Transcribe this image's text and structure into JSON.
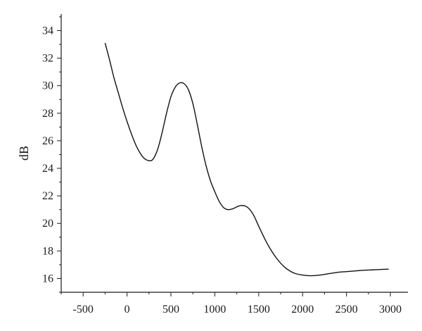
{
  "chart_data": {
    "type": "line",
    "title": "",
    "xlabel": "",
    "ylabel": "dB",
    "xlim": [
      -750,
      3200
    ],
    "ylim": [
      15,
      35.2
    ],
    "x_ticks": [
      -500,
      0,
      500,
      1000,
      1500,
      2000,
      2500,
      3000
    ],
    "y_ticks": [
      16,
      18,
      20,
      22,
      24,
      26,
      28,
      30,
      32,
      34
    ],
    "grid": false,
    "legend": "none",
    "series": [
      {
        "color": "#111111",
        "points": [
          [
            -250,
            33.1
          ],
          [
            -200,
            31.9
          ],
          [
            -150,
            30.6
          ],
          [
            -100,
            29.5
          ],
          [
            -50,
            28.4
          ],
          [
            0,
            27.4
          ],
          [
            50,
            26.5
          ],
          [
            100,
            25.7
          ],
          [
            150,
            25.1
          ],
          [
            200,
            24.7
          ],
          [
            260,
            24.55
          ],
          [
            300,
            24.7
          ],
          [
            350,
            25.4
          ],
          [
            400,
            26.6
          ],
          [
            450,
            28.0
          ],
          [
            500,
            29.2
          ],
          [
            550,
            29.9
          ],
          [
            600,
            30.2
          ],
          [
            650,
            30.15
          ],
          [
            700,
            29.7
          ],
          [
            750,
            28.7
          ],
          [
            800,
            27.2
          ],
          [
            850,
            25.6
          ],
          [
            900,
            24.2
          ],
          [
            950,
            23.1
          ],
          [
            1000,
            22.3
          ],
          [
            1050,
            21.6
          ],
          [
            1100,
            21.15
          ],
          [
            1150,
            21.0
          ],
          [
            1200,
            21.05
          ],
          [
            1250,
            21.2
          ],
          [
            1300,
            21.3
          ],
          [
            1350,
            21.25
          ],
          [
            1400,
            21.0
          ],
          [
            1450,
            20.5
          ],
          [
            1500,
            19.8
          ],
          [
            1600,
            18.5
          ],
          [
            1700,
            17.5
          ],
          [
            1800,
            16.8
          ],
          [
            1900,
            16.4
          ],
          [
            2000,
            16.25
          ],
          [
            2100,
            16.2
          ],
          [
            2200,
            16.25
          ],
          [
            2300,
            16.35
          ],
          [
            2400,
            16.45
          ],
          [
            2500,
            16.5
          ],
          [
            2600,
            16.55
          ],
          [
            2700,
            16.6
          ],
          [
            2800,
            16.63
          ],
          [
            2900,
            16.66
          ],
          [
            2980,
            16.68
          ]
        ]
      }
    ]
  }
}
